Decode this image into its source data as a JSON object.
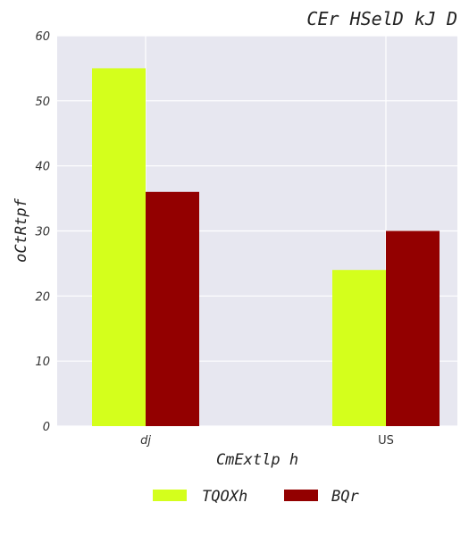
{
  "chart_data": {
    "type": "bar",
    "title": "CEr HSelD kJ D",
    "xlabel": "CmExtlp h",
    "ylabel": "oCtRtpf",
    "categories": [
      "dj",
      "US"
    ],
    "series": [
      {
        "name": "TQOXh",
        "values": [
          55,
          24
        ],
        "color": "#d4ff1c"
      },
      {
        "name": "BQr",
        "values": [
          36,
          30
        ],
        "color": "#930000"
      }
    ],
    "ylim": [
      0,
      60
    ],
    "yticks": [
      0,
      10,
      20,
      30,
      40,
      50,
      60
    ],
    "grid": true,
    "legend_position": "bottom-center",
    "background": "#e7e7f0"
  }
}
